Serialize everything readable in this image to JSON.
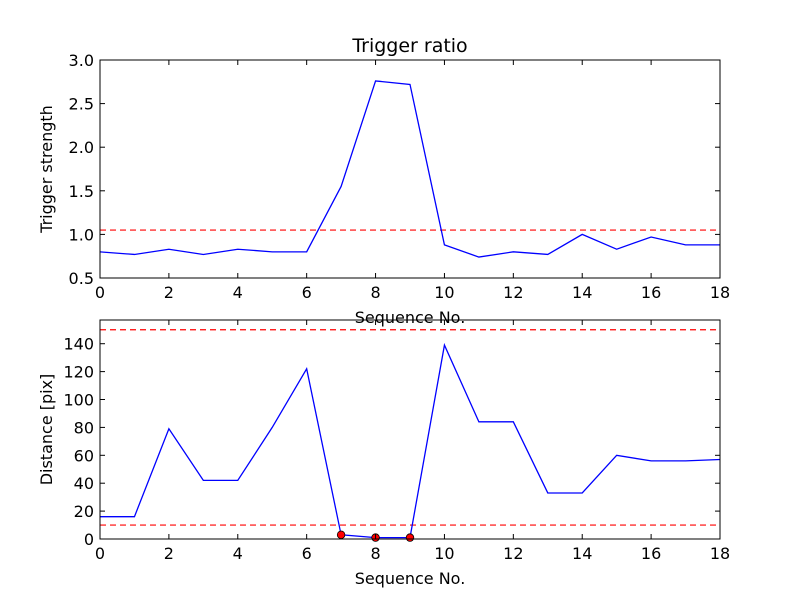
{
  "chart_data": [
    {
      "type": "line",
      "title": "Trigger ratio",
      "xlabel": "Sequence No.",
      "ylabel": "Trigger strength",
      "xlim": [
        0,
        18
      ],
      "ylim": [
        0.5,
        3.0
      ],
      "xticks": [
        "0",
        "2",
        "4",
        "6",
        "8",
        "10",
        "12",
        "14",
        "16",
        "18"
      ],
      "yticks": [
        "0.5",
        "1.0",
        "1.5",
        "2.0",
        "2.5",
        "3.0"
      ],
      "grid": false,
      "series": [
        {
          "color": "#0000ff",
          "x": [
            0,
            1,
            2,
            3,
            4,
            5,
            6,
            7,
            8,
            9,
            10,
            11,
            12,
            13,
            14,
            15,
            16,
            17,
            18
          ],
          "y": [
            0.8,
            0.77,
            0.83,
            0.77,
            0.83,
            0.8,
            0.8,
            1.55,
            2.76,
            2.72,
            0.88,
            0.74,
            0.8,
            0.77,
            1.0,
            0.83,
            0.97,
            0.88,
            0.88
          ]
        }
      ],
      "reference_lines": [
        {
          "y": 1.05,
          "color": "#ff0000",
          "style": "dashed"
        }
      ]
    },
    {
      "type": "line",
      "title": "",
      "xlabel": "Sequence No.",
      "ylabel": "Distance [pix]",
      "xlim": [
        0,
        18
      ],
      "ylim": [
        0,
        157
      ],
      "xticks": [
        "0",
        "2",
        "4",
        "6",
        "8",
        "10",
        "12",
        "14",
        "16",
        "18"
      ],
      "yticks": [
        "0",
        "20",
        "40",
        "60",
        "80",
        "100",
        "120",
        "140"
      ],
      "grid": false,
      "series": [
        {
          "color": "#0000ff",
          "x": [
            0,
            1,
            2,
            3,
            4,
            5,
            6,
            7,
            8,
            9,
            10,
            11,
            12,
            13,
            14,
            15,
            16,
            17,
            18
          ],
          "y": [
            16,
            16,
            79,
            42,
            42,
            80,
            122,
            3,
            1,
            1,
            139,
            84,
            84,
            33,
            33,
            60,
            56,
            56,
            57
          ]
        }
      ],
      "markers": {
        "color": "#ff0000",
        "x": [
          7,
          8,
          9
        ],
        "y": [
          3,
          1,
          1
        ]
      },
      "reference_lines": [
        {
          "y": 150,
          "color": "#ff0000",
          "style": "dashed"
        },
        {
          "y": 10,
          "color": "#ff0000",
          "style": "dashed"
        }
      ]
    }
  ]
}
